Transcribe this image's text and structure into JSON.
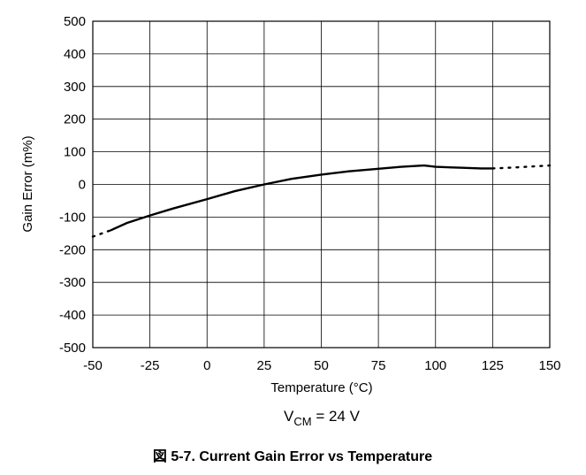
{
  "chart_data": {
    "type": "line",
    "title": "",
    "xlabel": "Temperature (°C)",
    "ylabel": "Gain Error (m%)",
    "xlim": [
      -50,
      150
    ],
    "ylim": [
      -500,
      500
    ],
    "xticks": [
      -50,
      -25,
      0,
      25,
      50,
      75,
      100,
      125,
      150
    ],
    "yticks": [
      500,
      400,
      300,
      200,
      100,
      0,
      -100,
      -200,
      -300,
      -400,
      -500
    ],
    "grid": true,
    "series": [
      {
        "style": "dotted",
        "x": [
          -50,
          -46,
          -42
        ],
        "y": [
          -160,
          -150,
          -140
        ]
      },
      {
        "style": "solid",
        "x": [
          -42,
          -35,
          -25,
          -15,
          0,
          12,
          25,
          37,
          50,
          62,
          75,
          85,
          95,
          100,
          112,
          120,
          125
        ],
        "y": [
          -140,
          -118,
          -95,
          -74,
          -45,
          -21,
          0,
          17,
          30,
          40,
          48,
          54,
          58,
          54,
          51,
          49,
          49
        ],
        "color": "#000000"
      },
      {
        "style": "dotted",
        "x": [
          125,
          135,
          150
        ],
        "y": [
          49,
          52,
          58
        ]
      }
    ],
    "condition": {
      "base": "V",
      "subscript": "CM",
      "rest": " = 24 V"
    },
    "caption": "図 5-7. Current Gain Error vs Temperature"
  }
}
